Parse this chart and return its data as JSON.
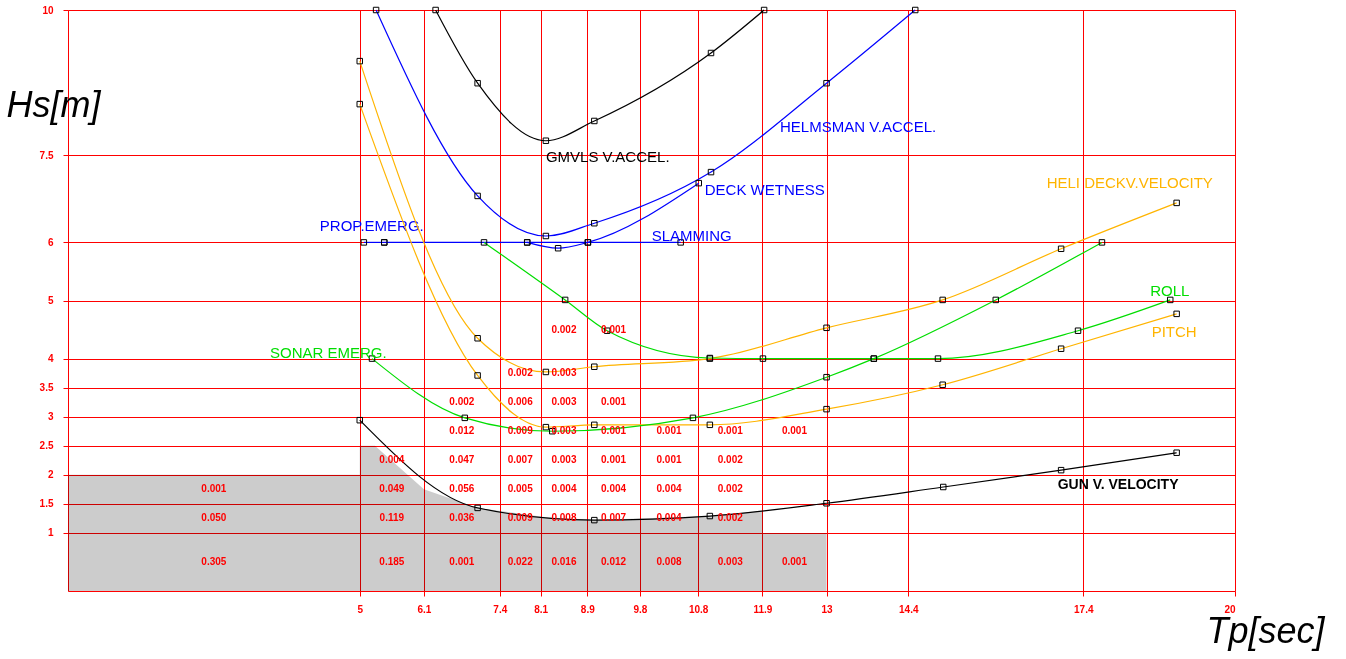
{
  "chart_data": {
    "type": "line",
    "xlabel": "Tp[sec]",
    "ylabel": "Hs[m]",
    "xlim": [
      0,
      20
    ],
    "ylim": [
      0,
      10
    ],
    "xticks": [
      5,
      6.1,
      7.4,
      8.1,
      8.9,
      9.8,
      10.8,
      11.9,
      13,
      14.4,
      17.4,
      20
    ],
    "yticks": [
      1,
      1.5,
      2,
      2.5,
      3,
      3.5,
      4,
      5,
      6,
      7.5,
      10
    ],
    "grid": true,
    "marker": "square",
    "line_style": "solid",
    "series": [
      {
        "type": "area",
        "marker": "none",
        "color": "#000000",
        "x": [
          0,
          5,
          5,
          5.26,
          6.1,
          7.02,
          8.19,
          9.02,
          11.0,
          11.91,
          11.91,
          13,
          13
        ],
        "values": [
          2,
          2,
          2.5,
          2.5,
          1.75,
          1.43,
          1.27,
          1.22,
          1.29,
          1.38,
          1,
          1,
          0
        ]
      },
      {
        "name": "GMVLS V.ACCEL.",
        "color": "#000000",
        "x": [
          6.3,
          7.02,
          8.19,
          9.02,
          11.02,
          11.93
        ],
        "values": [
          10,
          8.74,
          7.75,
          8.09,
          9.26,
          10
        ]
      },
      {
        "name": "HELMSMAN V.ACCEL.",
        "color": "#0000ff",
        "x": [
          5.28,
          7.02,
          8.19,
          9.02,
          11.02,
          13.0,
          14.52
        ],
        "values": [
          10,
          6.8,
          6.11,
          6.33,
          7.21,
          8.74,
          10
        ]
      },
      {
        "name": "DECK WETNESS",
        "color": "#0000ff",
        "x": [
          7.87,
          8.4,
          8.91,
          10.81
        ],
        "values": [
          6,
          5.9,
          6,
          7.02
        ]
      },
      {
        "name": "PROP.EMERG.",
        "color": "#0000ff",
        "x": [
          5.07,
          5.42
        ],
        "values": [
          6,
          6
        ]
      },
      {
        "name": "SLAMMING",
        "color": "#0000ff",
        "x": [
          5.42,
          7.87,
          8.91,
          10.5
        ],
        "values": [
          6,
          6,
          6,
          6
        ]
      },
      {
        "name": "HELI DECKV.VELOCITY",
        "color": "#ffb400",
        "x": [
          5,
          7.02,
          8.19,
          9.02,
          11.0,
          13.0,
          14.99,
          17.02,
          19.0
        ],
        "values": [
          9.12,
          4.35,
          3.77,
          3.86,
          4.0,
          4.53,
          5.01,
          5.89,
          6.68
        ]
      },
      {
        "name": "ROLL",
        "color": "#00dd00",
        "x": [
          7.13,
          8.52,
          9.24,
          11.0,
          11.91,
          13.81,
          14.91,
          17.31,
          18.89
        ],
        "values": [
          6,
          5.01,
          4.48,
          4.01,
          4,
          4,
          4,
          4.48,
          5.01
        ]
      },
      {
        "name": "PITCH",
        "color": "#ffb400",
        "x": [
          5,
          7.02,
          8.19,
          9.02,
          11.0,
          13.0,
          14.99,
          17.02,
          19.0
        ],
        "values": [
          8.38,
          3.71,
          2.82,
          2.86,
          2.86,
          3.13,
          3.55,
          4.17,
          4.77
        ]
      },
      {
        "name": "SONAR EMERG.",
        "color": "#00dd00",
        "x": [
          5.21,
          6.8,
          8.3,
          10.71,
          13.0,
          13.81,
          15.9,
          17.72
        ],
        "values": [
          4,
          2.98,
          2.75,
          2.98,
          3.68,
          4,
          5.01,
          6
        ]
      },
      {
        "name": "GUN V. VELOCITY",
        "color": "#000000",
        "x": [
          5,
          7.02,
          9.02,
          11.0,
          13.0,
          15.0,
          17.02,
          19.0
        ],
        "values": [
          2.94,
          1.43,
          1.22,
          1.29,
          1.51,
          1.79,
          2.08,
          2.38
        ]
      }
    ],
    "annotations": [
      "0.002",
      "0.001",
      "0.002",
      "0.003",
      "0.002",
      "0.006",
      "0.003",
      "0.001",
      "0.012",
      "0.009",
      "0.003",
      "0.001",
      "0.001",
      "0.001",
      "0.001",
      "0.004",
      "0.047",
      "0.007",
      "0.003",
      "0.001",
      "0.001",
      "0.002",
      "0.001",
      "0.049",
      "0.056",
      "0.005",
      "0.004",
      "0.004",
      "0.004",
      "0.002",
      "0.050",
      "0.119",
      "0.036",
      "0.009",
      "0.008",
      "0.007",
      "0.004",
      "0.002",
      "0.305",
      "0.185",
      "0.001",
      "0.022",
      "0.016",
      "0.012",
      "0.008",
      "0.003",
      "0.001"
    ]
  }
}
